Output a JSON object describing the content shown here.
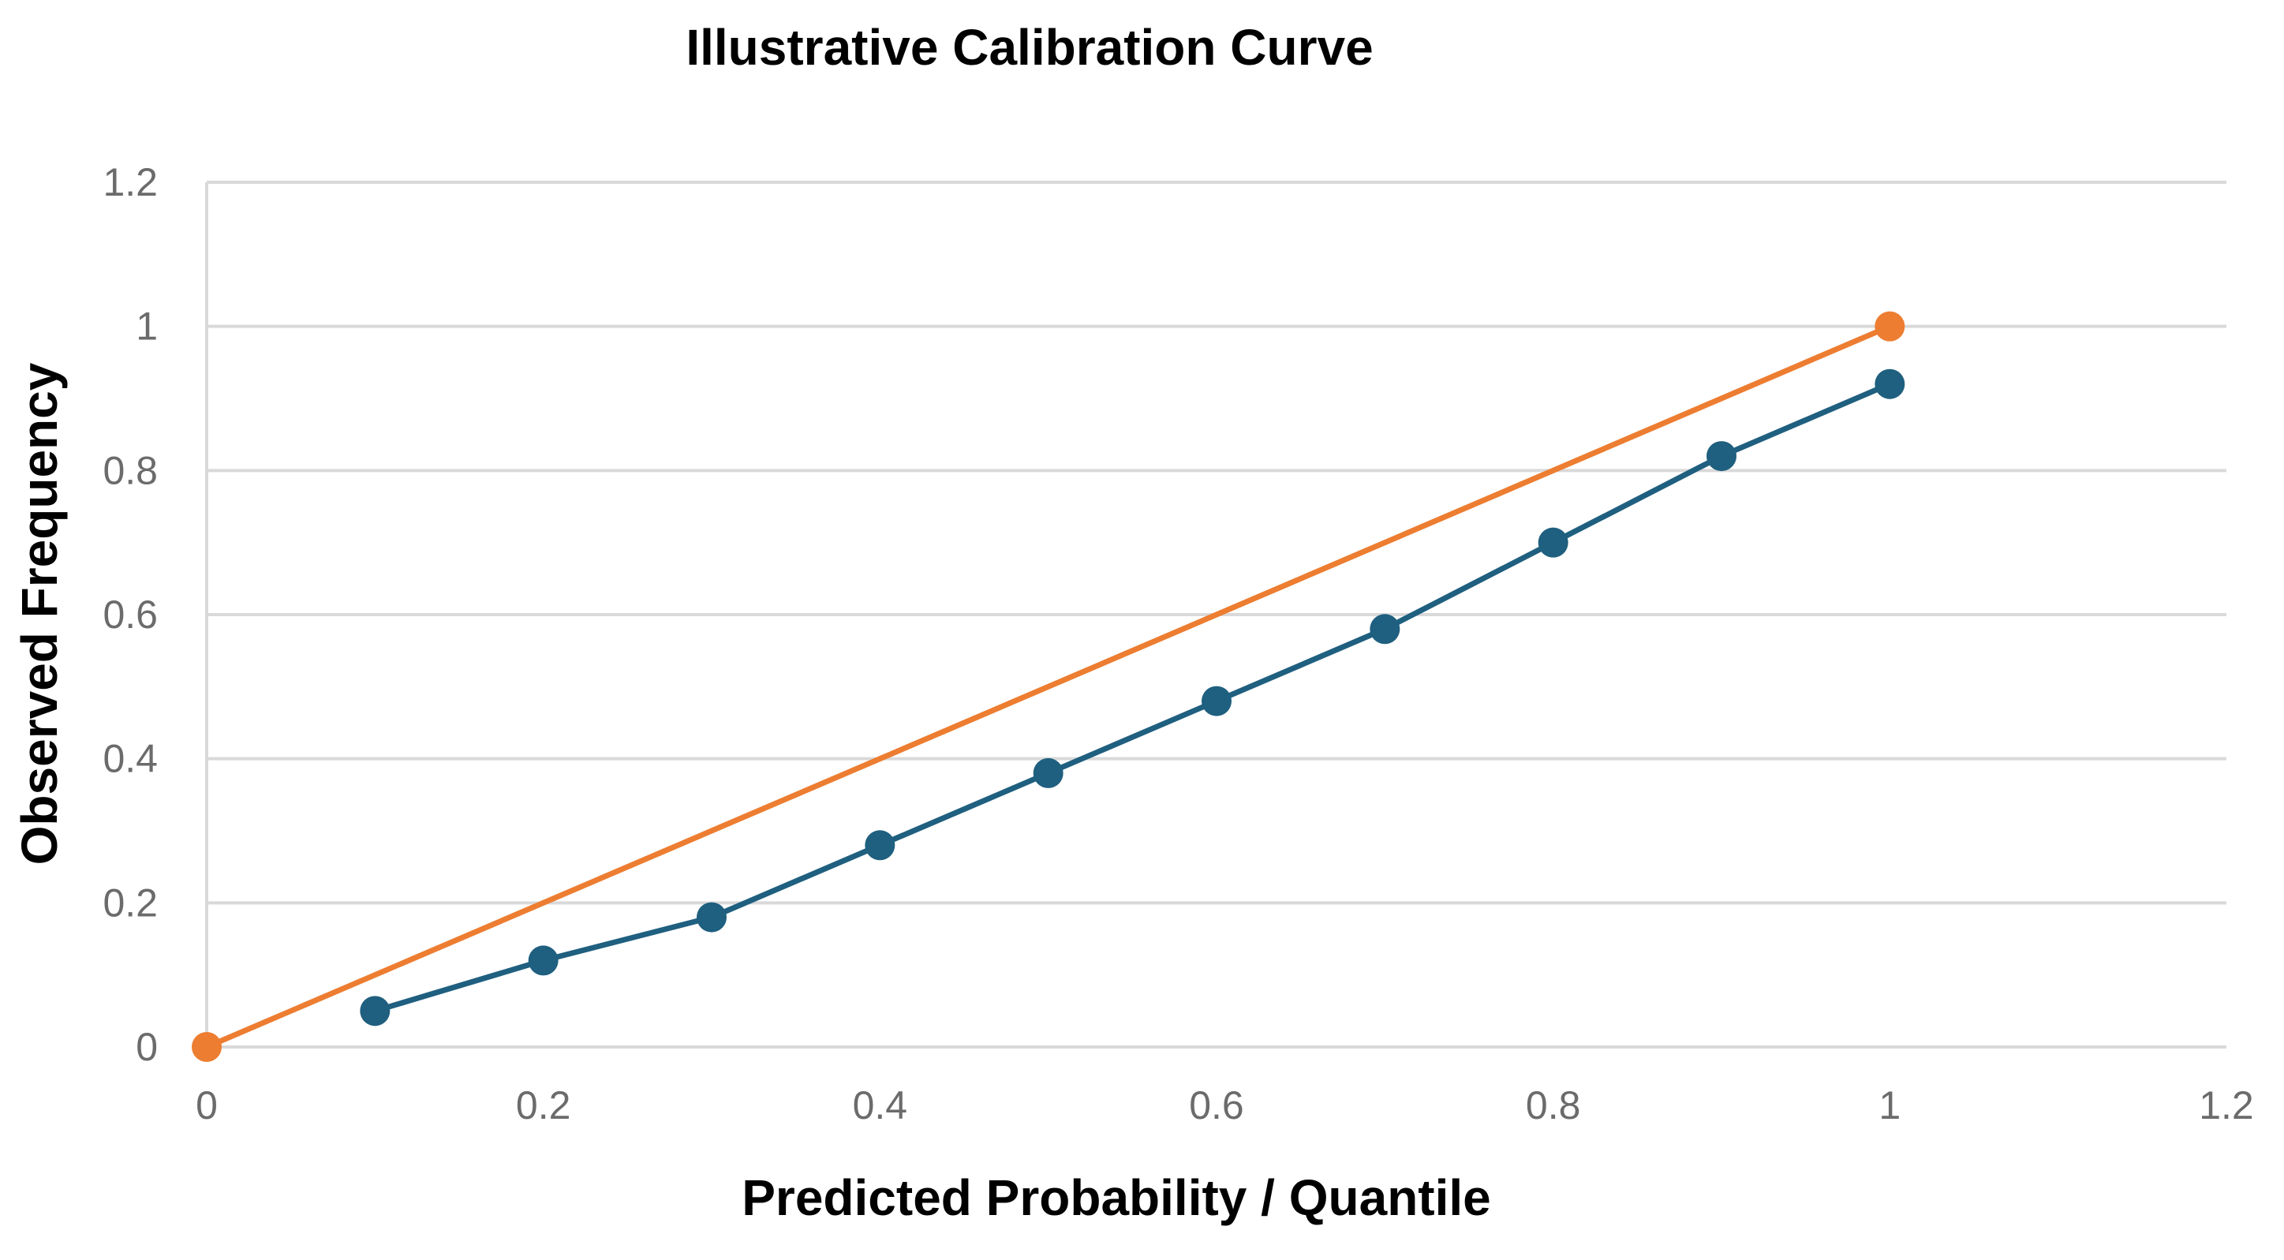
{
  "chart_data": {
    "type": "line",
    "title": "Illustrative Calibration Curve",
    "xlabel": "Predicted Probability / Quantile",
    "ylabel": "Observed Frequency",
    "xlim": [
      0,
      1.2
    ],
    "ylim": [
      0,
      1.2
    ],
    "x_ticks": [
      "0",
      "0.2",
      "0.4",
      "0.6",
      "0.8",
      "1",
      "1.2"
    ],
    "y_ticks": [
      "0",
      "0.2",
      "0.4",
      "0.6",
      "0.8",
      "1",
      "1.2"
    ],
    "grid": "horizontal",
    "legend": "none",
    "series": [
      {
        "color": "#ed7d31",
        "points": [
          [
            0,
            0
          ],
          [
            1,
            1
          ]
        ]
      },
      {
        "color": "#1f5f7f",
        "points": [
          [
            0.1,
            0.05
          ],
          [
            0.2,
            0.12
          ],
          [
            0.3,
            0.18
          ],
          [
            0.4,
            0.28
          ],
          [
            0.5,
            0.38
          ],
          [
            0.6,
            0.48
          ],
          [
            0.7,
            0.58
          ],
          [
            0.8,
            0.7
          ],
          [
            0.9,
            0.82
          ],
          [
            1.0,
            0.92
          ]
        ]
      }
    ]
  }
}
